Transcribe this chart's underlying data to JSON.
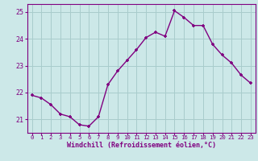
{
  "x": [
    0,
    1,
    2,
    3,
    4,
    5,
    6,
    7,
    8,
    9,
    10,
    11,
    12,
    13,
    14,
    15,
    16,
    17,
    18,
    19,
    20,
    21,
    22,
    23
  ],
  "y": [
    21.9,
    21.8,
    21.55,
    21.2,
    21.1,
    20.8,
    20.75,
    21.1,
    22.3,
    22.8,
    23.2,
    23.6,
    24.05,
    24.25,
    24.1,
    25.05,
    24.8,
    24.5,
    24.5,
    23.8,
    23.4,
    23.1,
    22.65,
    22.35
  ],
  "line_color": "#800080",
  "marker": "+",
  "marker_color": "#800080",
  "bg_color": "#cce8e8",
  "grid_color": "#a8cccc",
  "xlabel": "Windchill (Refroidissement éolien,°C)",
  "ylim": [
    20.5,
    25.3
  ],
  "xlim": [
    -0.5,
    23.5
  ],
  "yticks": [
    21,
    22,
    23,
    24,
    25
  ],
  "xticks": [
    0,
    1,
    2,
    3,
    4,
    5,
    6,
    7,
    8,
    9,
    10,
    11,
    12,
    13,
    14,
    15,
    16,
    17,
    18,
    19,
    20,
    21,
    22,
    23
  ],
  "tick_color": "#800080",
  "label_color": "#800080",
  "linewidth": 1.0,
  "markersize": 3.5,
  "font_family": "monospace"
}
